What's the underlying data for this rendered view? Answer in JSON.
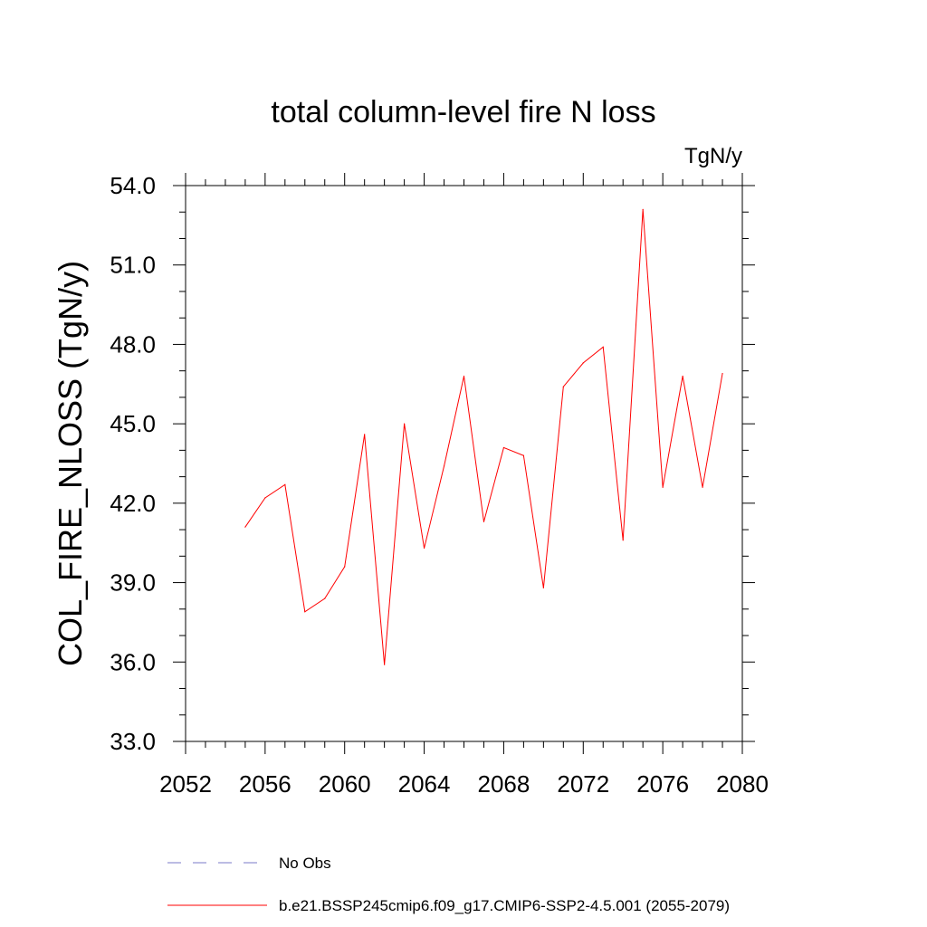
{
  "chart_data": {
    "type": "line",
    "title": "total column-level fire N loss",
    "units_label": "TgN/y",
    "ylabel": "COL_FIRE_NLOSS  (TgN/y)",
    "xlabel": "",
    "xlim": [
      2052,
      2080
    ],
    "ylim": [
      33.0,
      54.0
    ],
    "x_ticks": [
      2052,
      2056,
      2060,
      2064,
      2068,
      2072,
      2076,
      2080
    ],
    "x_tick_labels": [
      "2052",
      "2056",
      "2060",
      "2064",
      "2068",
      "2072",
      "2076",
      "2080"
    ],
    "y_ticks": [
      33.0,
      36.0,
      39.0,
      42.0,
      45.0,
      48.0,
      51.0,
      54.0
    ],
    "y_tick_labels": [
      "33.0",
      "36.0",
      "39.0",
      "42.0",
      "45.0",
      "48.0",
      "51.0",
      "54.0"
    ],
    "grid": false,
    "series": [
      {
        "name": "b.e21.BSSP245cmip6.f09_g17.CMIP6-SSP2-4.5.001 (2055-2079)",
        "color": "#ff0000",
        "x": [
          2055,
          2056,
          2057,
          2058,
          2059,
          2060,
          2061,
          2062,
          2063,
          2064,
          2065,
          2066,
          2067,
          2068,
          2069,
          2070,
          2071,
          2072,
          2073,
          2074,
          2075,
          2076,
          2077,
          2078,
          2079
        ],
        "y": [
          41.1,
          42.2,
          42.7,
          37.9,
          38.4,
          39.6,
          44.6,
          35.9,
          45.0,
          40.3,
          43.4,
          46.8,
          41.3,
          44.1,
          43.8,
          38.8,
          46.4,
          47.3,
          47.9,
          40.6,
          53.1,
          42.6,
          46.8,
          42.6,
          46.9
        ]
      }
    ],
    "legend": [
      {
        "label": "No Obs",
        "style": "dashed",
        "color": "#7a7ac8"
      },
      {
        "label": "b.e21.BSSP245cmip6.f09_g17.CMIP6-SSP2-4.5.001 (2055-2079)",
        "style": "solid",
        "color": "#ff0000"
      }
    ],
    "legend_placement": "bottom"
  }
}
